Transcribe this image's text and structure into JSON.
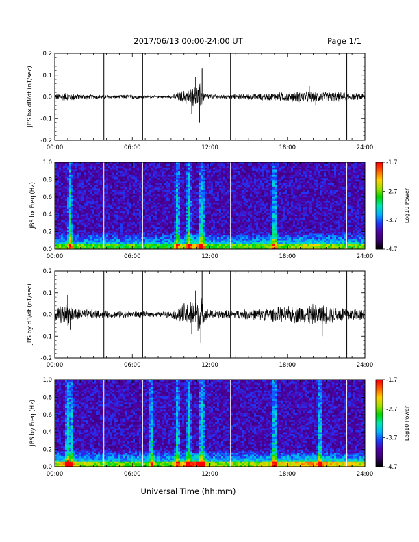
{
  "header": {
    "title": "2017/06/13  00:00-24:00 UT",
    "page": "Page 1/1"
  },
  "xlabel": "Universal Time (hh:mm)",
  "x_ticks": [
    "00:00",
    "06:00",
    "12:00",
    "18:00",
    "24:00"
  ],
  "colorbar": {
    "label": "Log10 Power",
    "tick_labels": [
      "-1.7",
      "-2.7",
      "-3.7",
      "-4.7"
    ],
    "colormap": [
      "#000000",
      "#3a0070",
      "#5000a8",
      "#1a3cff",
      "#00b4ff",
      "#00e8b0",
      "#00d400",
      "#a0e000",
      "#ffd000",
      "#ff6000",
      "#ff0000"
    ]
  },
  "chart_data": [
    {
      "type": "line",
      "title": "",
      "ylabel": "JBS bx dB/dt (nT/sec)",
      "xlabel": "",
      "xlim": [
        "00:00",
        "24:00"
      ],
      "ylim": [
        -0.2,
        0.2
      ],
      "y_tick_labels": [
        "0.2",
        "0.1",
        "0.0",
        "-0.1",
        "-0.2"
      ],
      "y_tick_values": [
        0.2,
        0.1,
        0.0,
        -0.1,
        -0.2
      ],
      "vertical_markers_hours": [
        3.8,
        6.8,
        13.6,
        22.6
      ],
      "series": [
        {
          "activity_envelope": [
            [
              0,
              0.015
            ],
            [
              1,
              0.02
            ],
            [
              2,
              0.012
            ],
            [
              3,
              0.01
            ],
            [
              4,
              0.008
            ],
            [
              5,
              0.008
            ],
            [
              6,
              0.01
            ],
            [
              7,
              0.006
            ],
            [
              8,
              0.005
            ],
            [
              9,
              0.006
            ],
            [
              9.5,
              0.018
            ],
            [
              10,
              0.03
            ],
            [
              10.8,
              0.045
            ],
            [
              11.3,
              0.06
            ],
            [
              11.5,
              0.02
            ],
            [
              12,
              0.012
            ],
            [
              13,
              0.008
            ],
            [
              14,
              0.012
            ],
            [
              15,
              0.012
            ],
            [
              16,
              0.015
            ],
            [
              17,
              0.018
            ],
            [
              18,
              0.02
            ],
            [
              19,
              0.025
            ],
            [
              20,
              0.025
            ],
            [
              21,
              0.022
            ],
            [
              22,
              0.02
            ],
            [
              23,
              0.015
            ],
            [
              24,
              0.015
            ]
          ],
          "spikes": [
            [
              11.4,
              0.13
            ],
            [
              11.2,
              -0.12
            ],
            [
              10.9,
              0.09
            ],
            [
              10.6,
              -0.08
            ],
            [
              19.7,
              0.05
            ],
            [
              20.2,
              -0.04
            ]
          ]
        }
      ]
    },
    {
      "type": "heatmap",
      "title": "",
      "ylabel": "JBS bx Freq (Hz)",
      "xlabel": "",
      "xlim": [
        "00:00",
        "24:00"
      ],
      "ylim": [
        0.0,
        1.0
      ],
      "y_tick_labels": [
        "1.0",
        "0.8",
        "0.6",
        "0.4",
        "0.2",
        "0.0"
      ],
      "y_tick_values": [
        1.0,
        0.8,
        0.6,
        0.4,
        0.2,
        0.0
      ],
      "color_range": [
        -4.7,
        -1.7
      ],
      "vertical_markers_hours": [
        3.8,
        6.8,
        13.6,
        22.6
      ],
      "bright_columns_hours": [
        1.2,
        9.5,
        10.4,
        11.3,
        11.4,
        17.0
      ]
    },
    {
      "type": "line",
      "title": "",
      "ylabel": "JBS by dB/dt (nT/sec)",
      "xlabel": "",
      "xlim": [
        "00:00",
        "24:00"
      ],
      "ylim": [
        -0.2,
        0.2
      ],
      "y_tick_labels": [
        "0.2",
        "0.1",
        "0.0",
        "-0.1",
        "-0.2"
      ],
      "y_tick_values": [
        0.2,
        0.1,
        0.0,
        -0.1,
        -0.2
      ],
      "vertical_markers_hours": [
        3.8,
        6.8,
        13.6,
        22.6
      ],
      "series": [
        {
          "activity_envelope": [
            [
              0,
              0.025
            ],
            [
              0.5,
              0.04
            ],
            [
              1,
              0.05
            ],
            [
              1.5,
              0.03
            ],
            [
              2,
              0.025
            ],
            [
              3,
              0.02
            ],
            [
              4,
              0.015
            ],
            [
              5,
              0.014
            ],
            [
              6,
              0.015
            ],
            [
              7,
              0.012
            ],
            [
              8,
              0.012
            ],
            [
              9,
              0.014
            ],
            [
              9.5,
              0.03
            ],
            [
              10,
              0.05
            ],
            [
              10.8,
              0.06
            ],
            [
              11.3,
              0.08
            ],
            [
              11.6,
              0.03
            ],
            [
              12,
              0.02
            ],
            [
              13,
              0.018
            ],
            [
              14,
              0.02
            ],
            [
              15,
              0.022
            ],
            [
              16,
              0.025
            ],
            [
              17,
              0.03
            ],
            [
              18,
              0.035
            ],
            [
              19,
              0.04
            ],
            [
              20,
              0.045
            ],
            [
              21,
              0.04
            ],
            [
              22,
              0.035
            ],
            [
              23,
              0.03
            ],
            [
              24,
              0.025
            ]
          ],
          "spikes": [
            [
              11.4,
              0.2
            ],
            [
              11.3,
              -0.13
            ],
            [
              10.9,
              0.11
            ],
            [
              10.6,
              -0.09
            ],
            [
              20.7,
              -0.1
            ],
            [
              1.0,
              0.09
            ],
            [
              1.2,
              -0.07
            ]
          ]
        }
      ]
    },
    {
      "type": "heatmap",
      "title": "",
      "ylabel": "JBS by Freq (Hz)",
      "xlabel": "Universal Time (hh:mm)",
      "xlim": [
        "00:00",
        "24:00"
      ],
      "ylim": [
        0.0,
        1.0
      ],
      "y_tick_labels": [
        "1.0",
        "0.8",
        "0.6",
        "0.4",
        "0.2",
        "0.0"
      ],
      "y_tick_values": [
        1.0,
        0.8,
        0.6,
        0.4,
        0.2,
        0.0
      ],
      "color_range": [
        -4.7,
        -1.7
      ],
      "vertical_markers_hours": [
        3.8,
        6.8,
        13.6,
        22.6
      ],
      "bright_columns_hours": [
        1.0,
        1.3,
        7.5,
        9.5,
        10.4,
        11.3,
        11.4,
        17.0,
        20.5
      ]
    }
  ]
}
